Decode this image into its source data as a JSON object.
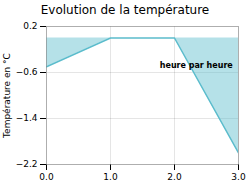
{
  "chart_data": {
    "type": "area",
    "title": "Evolution de la température",
    "ylabel": "Température en °C",
    "annotations": [
      "heure par heure"
    ],
    "x": [
      0,
      1,
      2,
      3
    ],
    "values": [
      -0.5,
      0.0,
      0.0,
      -2.0
    ],
    "baseline": 0.0,
    "color": "#5bbccc",
    "xlim": [
      0,
      3
    ],
    "ylim": [
      -2.2,
      0.2
    ],
    "xticks": [
      0,
      1,
      2,
      3
    ],
    "yticks": [
      0.2,
      -0.6,
      -1.4,
      -2.2
    ],
    "grid": true
  }
}
